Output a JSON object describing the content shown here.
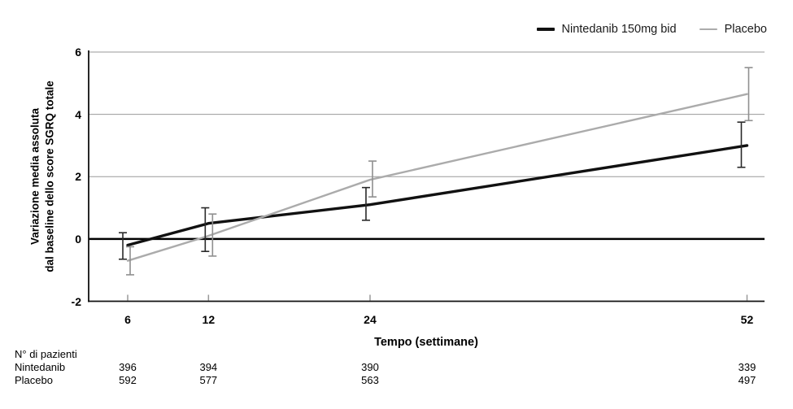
{
  "chart_data": {
    "type": "line",
    "title": "",
    "xlabel": "Tempo (settimane)",
    "ylabel": "Variazione media assoluta dal baseline dello score SGRQ totale",
    "ylabel_lines": [
      "Variazione media assoluta",
      "dal baseline dello score SGRQ totale"
    ],
    "x": [
      6,
      12,
      24,
      52
    ],
    "xticks": [
      6,
      12,
      24,
      52
    ],
    "yticks": [
      6,
      4,
      2,
      0,
      -2
    ],
    "xlim": [
      3.1,
      53.3
    ],
    "ylim": [
      -2,
      6
    ],
    "grid": "horizontal",
    "zero_line": true,
    "legend_position": "top-right",
    "axis_colors": {
      "gridline": "#999999",
      "zero_line": "#000000",
      "spine": "#111111",
      "tick_mark": "#999999"
    },
    "series": [
      {
        "name": "Nintedanib 150mg bid",
        "color": "#111111",
        "error_color": "#2a2a2a",
        "line_width": 3.4,
        "values": [
          -0.2,
          0.5,
          1.1,
          3.0
        ],
        "err_low": [
          -0.65,
          -0.4,
          0.6,
          2.3
        ],
        "err_high": [
          0.2,
          1.0,
          1.65,
          3.75
        ],
        "err_x_offset": [
          -6,
          -4,
          -5,
          -7
        ]
      },
      {
        "name": "Placebo",
        "color": "#ababab",
        "error_color": "#8f8f8f",
        "line_width": 2.4,
        "values": [
          -0.7,
          0.1,
          1.9,
          4.65
        ],
        "err_low": [
          -1.15,
          -0.55,
          1.35,
          3.8
        ],
        "err_high": [
          -0.25,
          0.8,
          2.5,
          5.5
        ],
        "err_x_offset": [
          3,
          5,
          3,
          2
        ]
      }
    ]
  },
  "patients_table": {
    "header": "N° di pazienti",
    "rows": [
      {
        "label": "Nintedanib",
        "values": [
          "396",
          "394",
          "390",
          "339"
        ]
      },
      {
        "label": "Placebo",
        "values": [
          "592",
          "577",
          "563",
          "497"
        ]
      }
    ]
  }
}
